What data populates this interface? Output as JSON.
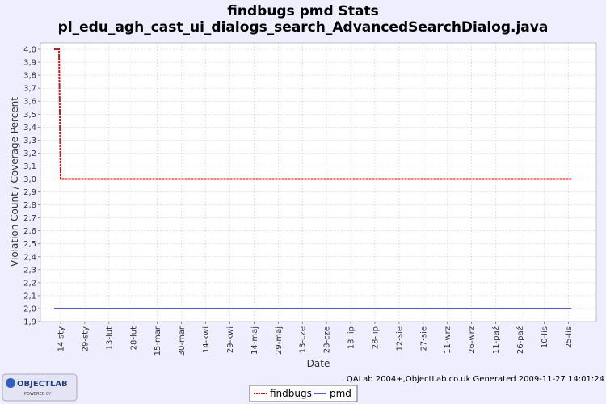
{
  "header": {
    "title_line1": "findbugs pmd  Stats",
    "title_line2": "pl_edu_agh_cast_ui_dialogs_search_AdvancedSearchDialog.java"
  },
  "footer": {
    "credits": "QALab 2004+,ObjectLab.co.uk Generated 2009-11-27 14:01:24",
    "logo_text": "OBJECTLAB",
    "logo_sub": "POWERED BY"
  },
  "colors": {
    "page_background": "#eeeeff",
    "plot_background": "#ffffff",
    "findbugs": "#ff0000",
    "pmd": "#5555ff",
    "gridline": "#cccccc"
  },
  "chart_data": {
    "type": "line",
    "xlabel": "Date",
    "ylabel": "Violation Count / Coverage Percent",
    "ylim": [
      1.9,
      4.05
    ],
    "y_ticks": [
      "1,9",
      "2,0",
      "2,1",
      "2,2",
      "2,3",
      "2,4",
      "2,5",
      "2,6",
      "2,7",
      "2,8",
      "2,9",
      "3,0",
      "3,1",
      "3,2",
      "3,3",
      "3,4",
      "3,5",
      "3,6",
      "3,7",
      "3,8",
      "3,9",
      "4,0"
    ],
    "x_ticks": [
      "14-sty",
      "29-sty",
      "13-lut",
      "28-lut",
      "15-mar",
      "30-mar",
      "14-kwi",
      "29-kwi",
      "14-maj",
      "29-maj",
      "13-cze",
      "28-cze",
      "13-lip",
      "28-lip",
      "12-sie",
      "27-sie",
      "11-wrz",
      "26-wrz",
      "11-paź",
      "26-paź",
      "10-lis",
      "25-lis"
    ],
    "grid": true,
    "legend_position": "bottom",
    "series": [
      {
        "name": "findbugs",
        "color": "#ff0000",
        "points": [
          {
            "x": "2009-01-10",
            "y": 4.0
          },
          {
            "x": "2009-01-13",
            "y": 4.0
          },
          {
            "x": "2009-01-14",
            "y": 3.0
          },
          {
            "x": "2009-11-27",
            "y": 3.0
          }
        ]
      },
      {
        "name": "pmd",
        "color": "#5555ff",
        "points": [
          {
            "x": "2009-01-10",
            "y": 2.0
          },
          {
            "x": "2009-11-27",
            "y": 2.0
          }
        ]
      }
    ]
  }
}
